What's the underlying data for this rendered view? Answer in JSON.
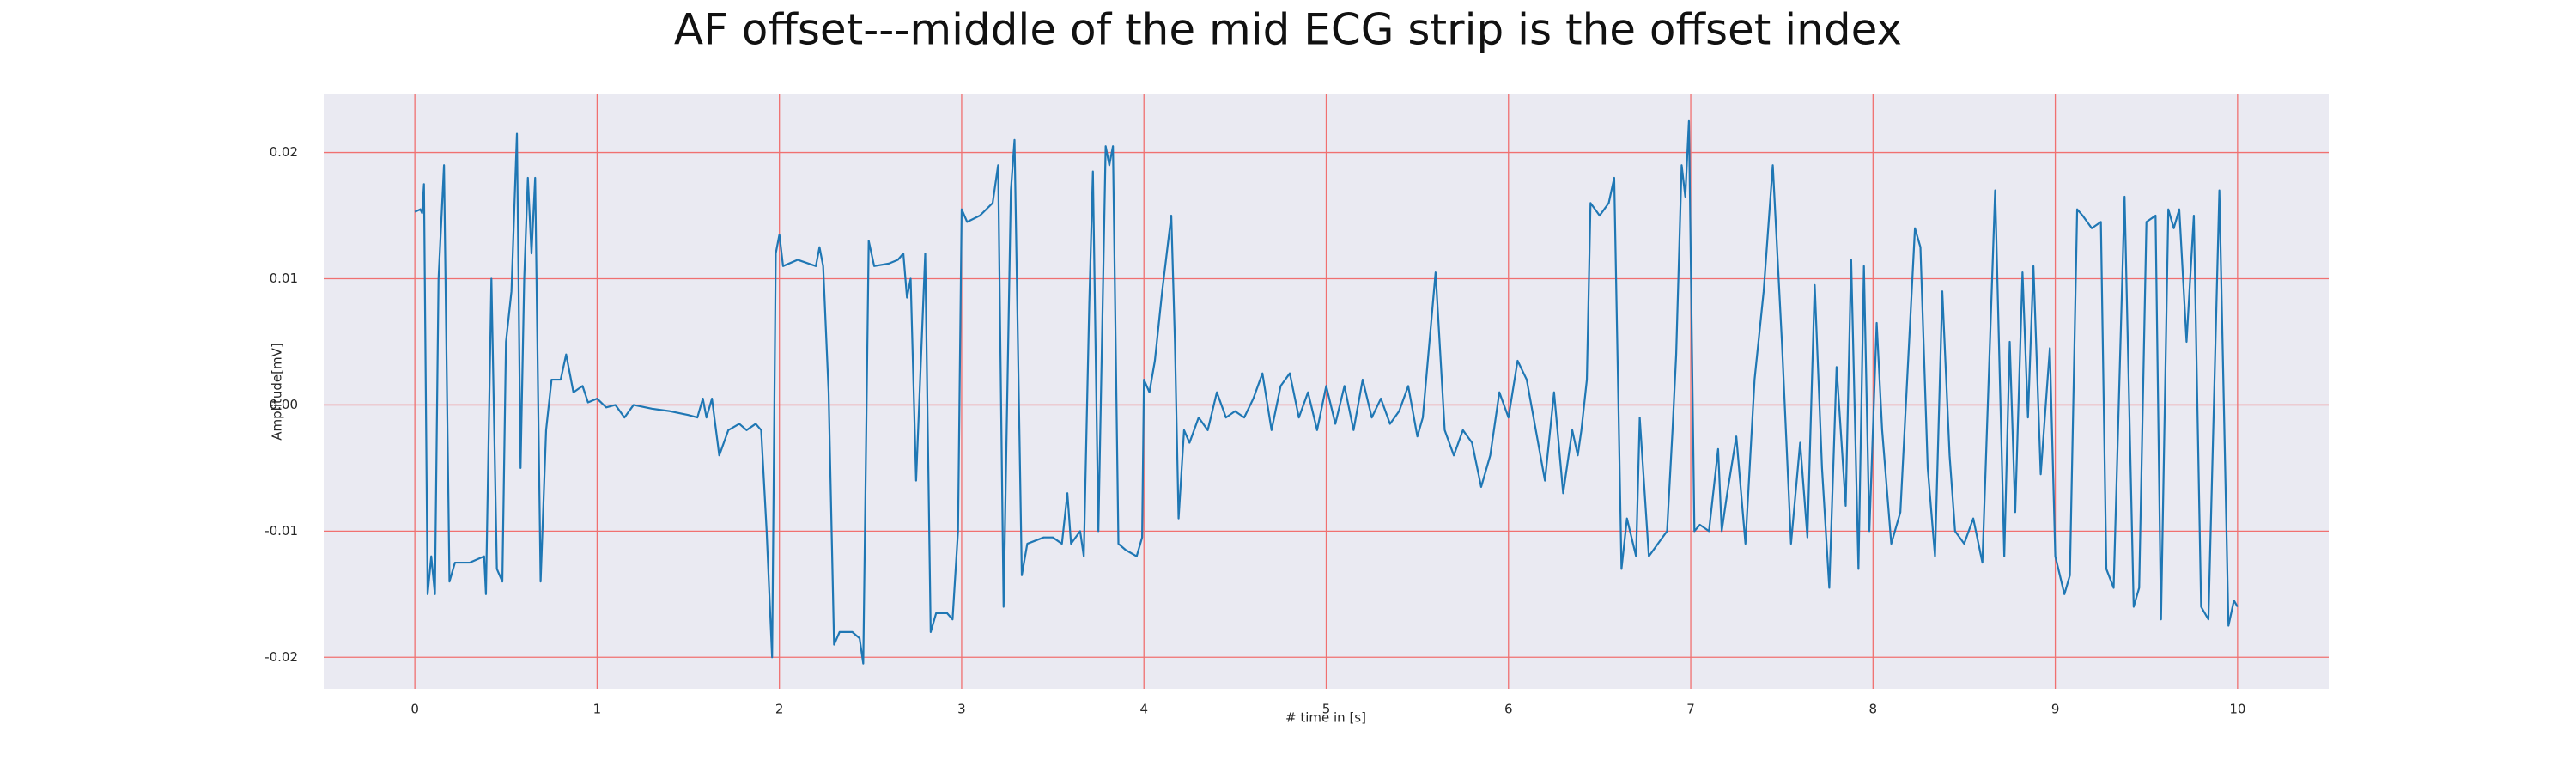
{
  "chart_data": {
    "type": "line",
    "title": "AF offset---middle of the mid ECG strip is the offset index",
    "xlabel": "# time in [s]",
    "ylabel": "Amplitude[mV]",
    "xlim": [
      -0.5,
      10.5
    ],
    "ylim": [
      -0.0225,
      0.0246
    ],
    "xticks": [
      0,
      1,
      2,
      3,
      4,
      5,
      6,
      7,
      8,
      9,
      10
    ],
    "yticks": [
      -0.02,
      -0.01,
      {
        "value": 0,
        "label": "0.00"
      },
      0.01,
      0.02
    ],
    "grid": true,
    "grid_color": "#f07070",
    "background": "#eaeaf2",
    "series": [
      {
        "color": "#1f77b4",
        "x": [
          0,
          0.03,
          0.04,
          0.05,
          0.07,
          0.09,
          0.11,
          0.13,
          0.16,
          0.19,
          0.22,
          0.3,
          0.38,
          0.39,
          0.42,
          0.45,
          0.48,
          0.5,
          0.53,
          0.56,
          0.58,
          0.6,
          0.62,
          0.64,
          0.66,
          0.69,
          0.72,
          0.75,
          0.8,
          0.83,
          0.87,
          0.92,
          0.95,
          1,
          1.05,
          1.1,
          1.15,
          1.2,
          1.3,
          1.4,
          1.5,
          1.55,
          1.58,
          1.6,
          1.63,
          1.67,
          1.72,
          1.78,
          1.82,
          1.87,
          1.9,
          1.93,
          1.96,
          1.98,
          2,
          2.02,
          2.1,
          2.2,
          2.22,
          2.24,
          2.27,
          2.3,
          2.33,
          2.4,
          2.44,
          2.46,
          2.49,
          2.52,
          2.6,
          2.65,
          2.68,
          2.7,
          2.72,
          2.75,
          2.8,
          2.83,
          2.86,
          2.92,
          2.95,
          2.98,
          3,
          3.03,
          3.1,
          3.17,
          3.2,
          3.23,
          3.27,
          3.29,
          3.33,
          3.36,
          3.45,
          3.5,
          3.55,
          3.58,
          3.6,
          3.65,
          3.67,
          3.7,
          3.72,
          3.75,
          3.79,
          3.81,
          3.83,
          3.86,
          3.9,
          3.96,
          3.99,
          4,
          4.03,
          4.06,
          4.1,
          4.15,
          4.17,
          4.19,
          4.22,
          4.25,
          4.3,
          4.35,
          4.4,
          4.45,
          4.5,
          4.55,
          4.6,
          4.65,
          4.7,
          4.75,
          4.8,
          4.85,
          4.9,
          4.95,
          5,
          5.05,
          5.1,
          5.15,
          5.2,
          5.25,
          5.3,
          5.35,
          5.4,
          5.45,
          5.5,
          5.53,
          5.6,
          5.65,
          5.7,
          5.75,
          5.8,
          5.85,
          5.9,
          5.95,
          6,
          6.05,
          6.1,
          6.15,
          6.2,
          6.25,
          6.3,
          6.35,
          6.38,
          6.4,
          6.43,
          6.45,
          6.5,
          6.55,
          6.58,
          6.62,
          6.65,
          6.7,
          6.72,
          6.77,
          6.82,
          6.87,
          6.9,
          6.92,
          6.95,
          6.97,
          6.99,
          7.02,
          7.05,
          7.1,
          7.15,
          7.17,
          7.2,
          7.25,
          7.3,
          7.35,
          7.4,
          7.45,
          7.5,
          7.55,
          7.6,
          7.64,
          7.68,
          7.72,
          7.76,
          7.8,
          7.85,
          7.88,
          7.92,
          7.95,
          7.98,
          8.02,
          8.05,
          8.1,
          8.15,
          8.23,
          8.26,
          8.3,
          8.34,
          8.38,
          8.42,
          8.45,
          8.5,
          8.55,
          8.6,
          8.67,
          8.72,
          8.75,
          8.78,
          8.82,
          8.85,
          8.88,
          8.92,
          8.97,
          9,
          9.05,
          9.08,
          9.12,
          9.15,
          9.2,
          9.25,
          9.28,
          9.32,
          9.38,
          9.43,
          9.46,
          9.5,
          9.55,
          9.58,
          9.62,
          9.65,
          9.68,
          9.72,
          9.76,
          9.8,
          9.84,
          9.9,
          9.95,
          9.98,
          10
        ],
        "values": [
          0.0153,
          0.0155,
          0.0152,
          0.0175,
          -0.015,
          -0.012,
          -0.015,
          0.01,
          0.019,
          -0.014,
          -0.0125,
          -0.0125,
          -0.012,
          -0.015,
          0.01,
          -0.013,
          -0.014,
          0.005,
          0.009,
          0.0215,
          -0.005,
          0.01,
          0.018,
          0.012,
          0.018,
          -0.014,
          -0.002,
          0.002,
          0.002,
          0.004,
          0.001,
          0.0015,
          0.0002,
          0.0005,
          -0.0002,
          0,
          -0.001,
          0,
          -0.0003,
          -0.0005,
          -0.0008,
          -0.001,
          0.0005,
          -0.001,
          0.0005,
          -0.004,
          -0.002,
          -0.0015,
          -0.002,
          -0.0015,
          -0.002,
          -0.01,
          -0.02,
          0.012,
          0.0135,
          0.011,
          0.0115,
          0.011,
          0.0125,
          0.011,
          0.001,
          -0.019,
          -0.018,
          -0.018,
          -0.0185,
          -0.0205,
          0.013,
          0.011,
          0.0112,
          0.0115,
          0.012,
          0.0085,
          0.01,
          -0.006,
          0.012,
          -0.018,
          -0.0165,
          -0.0165,
          -0.017,
          -0.01,
          0.0155,
          0.0145,
          0.015,
          0.016,
          0.019,
          -0.016,
          0.017,
          0.021,
          -0.0135,
          -0.011,
          -0.0105,
          -0.0105,
          -0.011,
          -0.007,
          -0.011,
          -0.01,
          -0.012,
          0.008,
          0.0185,
          -0.01,
          0.0205,
          0.019,
          0.0205,
          -0.011,
          -0.0115,
          -0.012,
          -0.0105,
          0.002,
          0.001,
          0.0035,
          0.009,
          0.015,
          0.005,
          -0.009,
          -0.002,
          -0.003,
          -0.001,
          -0.002,
          0.001,
          -0.001,
          -0.0005,
          -0.001,
          0.0005,
          0.0025,
          -0.002,
          0.0015,
          0.0025,
          -0.001,
          0.001,
          -0.002,
          0.0015,
          -0.0015,
          0.0015,
          -0.002,
          0.002,
          -0.001,
          0.0005,
          -0.0015,
          -0.0005,
          0.0015,
          -0.0025,
          -0.001,
          0.0105,
          -0.002,
          -0.004,
          -0.002,
          -0.003,
          -0.0065,
          -0.004,
          0.001,
          -0.001,
          0.0035,
          0.002,
          -0.002,
          -0.006,
          0.001,
          -0.007,
          -0.002,
          -0.004,
          -0.002,
          0.002,
          0.016,
          0.015,
          0.016,
          0.018,
          -0.013,
          -0.009,
          -0.012,
          -0.001,
          -0.012,
          -0.011,
          -0.01,
          -0.002,
          0.004,
          0.019,
          0.0165,
          0.0225,
          -0.01,
          -0.0095,
          -0.01,
          -0.0035,
          -0.01,
          -0.007,
          -0.0025,
          -0.011,
          0.002,
          0.009,
          0.019,
          0.005,
          -0.011,
          -0.003,
          -0.0105,
          0.0095,
          -0.005,
          -0.0145,
          0.003,
          -0.008,
          0.0115,
          -0.013,
          0.011,
          -0.01,
          0.0065,
          -0.002,
          -0.011,
          -0.0085,
          0.014,
          0.0125,
          -0.005,
          -0.012,
          0.009,
          -0.004,
          -0.01,
          -0.011,
          -0.009,
          -0.0125,
          0.017,
          -0.012,
          0.005,
          -0.0085,
          0.0105,
          -0.001,
          0.011,
          -0.0055,
          0.0045,
          -0.012,
          -0.015,
          -0.0135,
          0.0155,
          0.015,
          0.014,
          0.0145,
          -0.013,
          -0.0145,
          0.0165,
          -0.016,
          -0.0145,
          0.0145,
          0.015,
          -0.017,
          0.0155,
          0.014,
          0.0155,
          0.005,
          0.015,
          -0.016,
          -0.017,
          0.017,
          -0.0175,
          -0.0155,
          -0.016
        ]
      }
    ]
  }
}
